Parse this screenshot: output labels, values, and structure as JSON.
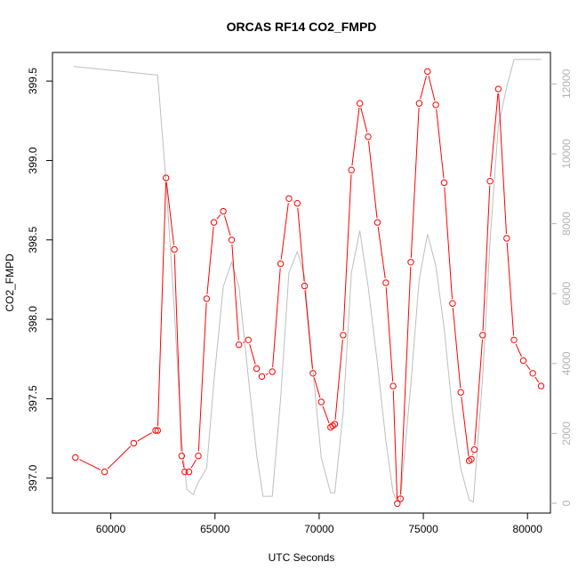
{
  "chart_data": {
    "type": "line",
    "title": "ORCAS RF14 CO2_FMPD",
    "xlabel": "UTC Seconds",
    "ylabel": "CO2_FMPD",
    "xlim": [
      57200,
      81100
    ],
    "ylim": [
      396.78,
      399.68
    ],
    "y2lim": [
      -280,
      12900
    ],
    "x_ticks": [
      "60000",
      "65000",
      "70000",
      "75000",
      "80000"
    ],
    "y_ticks": [
      "397.0",
      "397.5",
      "398.0",
      "398.5",
      "399.0",
      "399.5"
    ],
    "y2_ticks": [
      "0",
      "2000",
      "4000",
      "6000",
      "8000",
      "10000",
      "12000"
    ],
    "colors": {
      "co2": "#ff0000",
      "altitude": "#bebebe",
      "axis": "#000000",
      "right_axis": "#b3b3b3"
    },
    "series": [
      {
        "axis": "left",
        "style": "line+points",
        "x": [
          58300,
          59700,
          61100,
          62150,
          62250,
          62650,
          63050,
          63400,
          63550,
          63750,
          64200,
          64600,
          64950,
          65400,
          65800,
          66150,
          66600,
          67000,
          67250,
          67750,
          68150,
          68550,
          68950,
          69300,
          69700,
          70100,
          70550,
          70650,
          70750,
          71150,
          71550,
          71950,
          72350,
          72800,
          73200,
          73550,
          73750,
          73900,
          74400,
          74800,
          75200,
          75600,
          76000,
          76400,
          76800,
          77200,
          77300,
          77450,
          77850,
          78200,
          78600,
          79000,
          79350,
          79800,
          80250,
          80650
        ],
        "y": [
          397.13,
          397.04,
          397.22,
          397.3,
          397.3,
          398.89,
          398.44,
          397.14,
          397.04,
          397.04,
          397.14,
          398.13,
          398.61,
          398.68,
          398.5,
          397.84,
          397.87,
          397.69,
          397.64,
          397.67,
          398.35,
          398.76,
          398.73,
          398.21,
          397.66,
          397.48,
          397.32,
          397.33,
          397.34,
          397.9,
          398.94,
          399.36,
          399.15,
          398.61,
          398.23,
          397.58,
          396.84,
          396.87,
          398.36,
          399.36,
          399.56,
          399.35,
          398.86,
          398.1,
          397.54,
          397.11,
          397.12,
          397.18,
          397.9,
          398.87,
          399.45,
          398.51,
          397.87,
          397.74,
          397.66,
          397.58
        ]
      },
      {
        "axis": "right",
        "style": "line",
        "x": [
          58200,
          62250,
          62650,
          63050,
          63400,
          63650,
          63950,
          64200,
          64600,
          64950,
          65400,
          65800,
          66150,
          66600,
          67000,
          67300,
          67750,
          68150,
          68550,
          68950,
          69300,
          69700,
          70100,
          70550,
          70750,
          71150,
          71550,
          71950,
          72350,
          72800,
          73200,
          73550,
          73750,
          73900,
          74400,
          74800,
          75200,
          75600,
          76000,
          76400,
          76800,
          77200,
          77400,
          77850,
          78200,
          78600,
          79000,
          79350,
          79800,
          80250,
          80650
        ],
        "y": [
          12500,
          12250,
          9200,
          5500,
          1800,
          400,
          250,
          600,
          1000,
          3500,
          6200,
          6900,
          6200,
          3600,
          1400,
          200,
          200,
          3000,
          6600,
          7200,
          6500,
          3800,
          1300,
          300,
          300,
          2600,
          6600,
          7800,
          6200,
          4000,
          1800,
          300,
          50,
          100,
          3400,
          6400,
          7700,
          6800,
          5000,
          2600,
          1000,
          100,
          30,
          3600,
          7500,
          10800,
          11900,
          12700,
          12700,
          12700,
          12700
        ]
      }
    ]
  }
}
